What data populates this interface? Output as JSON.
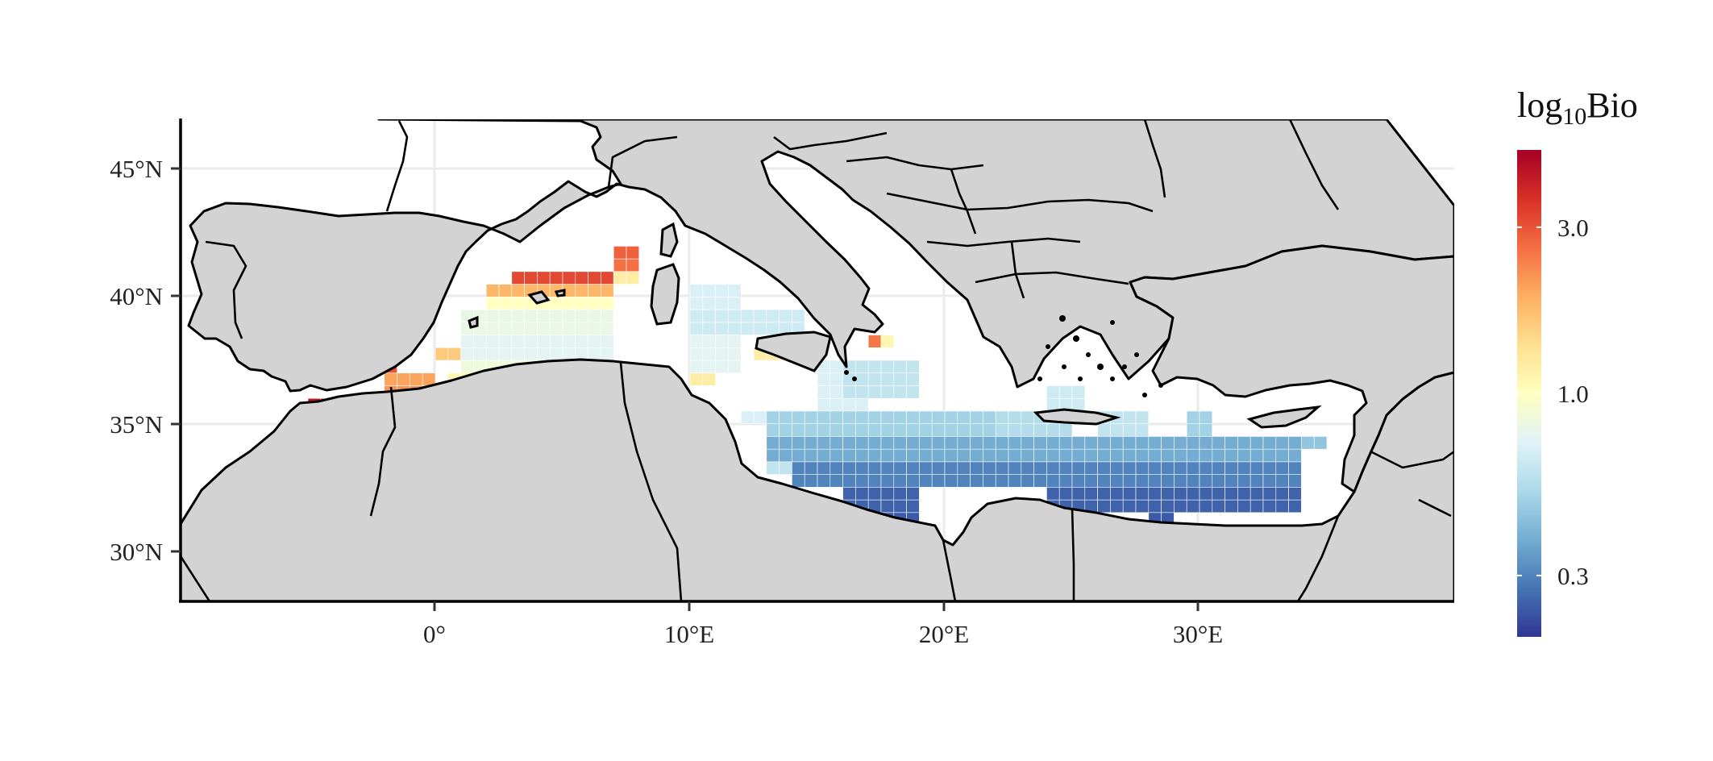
{
  "map": {
    "x_ticks": [
      "0°",
      "10°E",
      "20°E",
      "30°E"
    ],
    "y_ticks": [
      "45°N",
      "40°N",
      "35°N",
      "30°N"
    ],
    "lon_range": [
      -10,
      40
    ],
    "lat_range": [
      28,
      47
    ],
    "land_color": "#d3d3d3",
    "sea_color": "#ffffff",
    "grid": true
  },
  "legend": {
    "title_base": "log",
    "title_sub": "10",
    "title_suffix": "Bio",
    "ticks": [
      "3.0",
      "1.0",
      "0.3"
    ],
    "tick_values": [
      3.0,
      1.0,
      0.3
    ],
    "range": [
      0.2,
      5.0
    ],
    "scale": "log",
    "palette": "RdYlBu (reversed)",
    "colors": [
      "#313695",
      "#4575b4",
      "#74add1",
      "#abd9e9",
      "#e0f3f8",
      "#ffffbf",
      "#fee090",
      "#fdae61",
      "#f46d43",
      "#d73027",
      "#a50026"
    ]
  },
  "chart_data": {
    "type": "heatmap",
    "variable": "log10Bio",
    "cell_size_deg": 0.5,
    "blocks": [
      {
        "lon": [
          -5.0,
          -2.5
        ],
        "lat": [
          35.5,
          36.0
        ],
        "value": 4.2
      },
      {
        "lon": [
          -2.0,
          0.0
        ],
        "lat": [
          36.5,
          37.0
        ],
        "value": 2.0
      },
      {
        "lon": [
          -2.0,
          0.0
        ],
        "lat": [
          36.0,
          36.5
        ],
        "value": 2.2
      },
      {
        "lon": [
          -2.0,
          -1.5
        ],
        "lat": [
          37.0,
          37.5
        ],
        "value": 3.0
      },
      {
        "lon": [
          0.0,
          1.0
        ],
        "lat": [
          37.5,
          38.0
        ],
        "value": 1.6
      },
      {
        "lon": [
          0.5,
          9.0
        ],
        "lat": [
          36.5,
          37.0
        ],
        "value": 1.1
      },
      {
        "lon": [
          1.0,
          7.0
        ],
        "lat": [
          37.0,
          37.5
        ],
        "value": 0.85
      },
      {
        "lon": [
          1.0,
          7.0
        ],
        "lat": [
          37.5,
          38.5
        ],
        "value": 0.75
      },
      {
        "lon": [
          1.0,
          7.0
        ],
        "lat": [
          38.5,
          39.5
        ],
        "value": 0.8
      },
      {
        "lon": [
          2.0,
          7.0
        ],
        "lat": [
          39.5,
          40.0
        ],
        "value": 1.0
      },
      {
        "lon": [
          2.0,
          7.0
        ],
        "lat": [
          40.0,
          40.5
        ],
        "value": 1.8
      },
      {
        "lon": [
          3.0,
          7.0
        ],
        "lat": [
          40.5,
          41.0
        ],
        "value": 3.2
      },
      {
        "lon": [
          7.0,
          8.0
        ],
        "lat": [
          40.5,
          41.0
        ],
        "value": 1.2
      },
      {
        "lon": [
          7.0,
          8.0
        ],
        "lat": [
          41.0,
          41.5
        ],
        "value": 2.6
      },
      {
        "lon": [
          7.0,
          8.0
        ],
        "lat": [
          41.5,
          42.0
        ],
        "value": 2.8
      },
      {
        "lon": [
          10.0,
          11.0
        ],
        "lat": [
          36.5,
          37.0
        ],
        "value": 1.2
      },
      {
        "lon": [
          10.0,
          12.0
        ],
        "lat": [
          37.0,
          38.5
        ],
        "value": 0.75
      },
      {
        "lon": [
          10.0,
          14.5
        ],
        "lat": [
          38.5,
          39.5
        ],
        "value": 0.65
      },
      {
        "lon": [
          10.0,
          12.0
        ],
        "lat": [
          39.5,
          40.5
        ],
        "value": 0.7
      },
      {
        "lon": [
          12.5,
          15.0
        ],
        "lat": [
          37.5,
          38.0
        ],
        "value": 1.2
      },
      {
        "lon": [
          17.0,
          17.5
        ],
        "lat": [
          38.0,
          38.5
        ],
        "value": 2.5
      },
      {
        "lon": [
          17.5,
          18.0
        ],
        "lat": [
          38.0,
          38.5
        ],
        "value": 1.1
      },
      {
        "lon": [
          15.0,
          17.0
        ],
        "lat": [
          35.0,
          37.5
        ],
        "value": 0.7
      },
      {
        "lon": [
          16.0,
          19.0
        ],
        "lat": [
          36.0,
          37.5
        ],
        "value": 0.6
      },
      {
        "lon": [
          12.0,
          15.0
        ],
        "lat": [
          35.0,
          35.5
        ],
        "value": 0.7
      },
      {
        "lon": [
          13.0,
          22.0
        ],
        "lat": [
          34.5,
          35.5
        ],
        "value": 0.5
      },
      {
        "lon": [
          22.0,
          25.0
        ],
        "lat": [
          34.5,
          35.5
        ],
        "value": 0.55
      },
      {
        "lon": [
          24.0,
          25.5
        ],
        "lat": [
          35.5,
          36.5
        ],
        "value": 0.65
      },
      {
        "lon": [
          26.0,
          28.0
        ],
        "lat": [
          34.5,
          35.5
        ],
        "value": 0.6
      },
      {
        "lon": [
          29.5,
          30.5
        ],
        "lat": [
          34.5,
          35.5
        ],
        "value": 0.5
      },
      {
        "lon": [
          13.0,
          34.0
        ],
        "lat": [
          33.5,
          34.5
        ],
        "value": 0.38
      },
      {
        "lon": [
          34.0,
          35.0
        ],
        "lat": [
          34.0,
          34.5
        ],
        "value": 0.45
      },
      {
        "lon": [
          13.0,
          14.0
        ],
        "lat": [
          33.0,
          33.5
        ],
        "value": 0.6
      },
      {
        "lon": [
          14.0,
          34.0
        ],
        "lat": [
          32.5,
          33.5
        ],
        "value": 0.3
      },
      {
        "lon": [
          16.0,
          19.0
        ],
        "lat": [
          31.5,
          32.5
        ],
        "value": 0.25
      },
      {
        "lon": [
          17.0,
          19.0
        ],
        "lat": [
          31.0,
          31.5
        ],
        "value": 0.24
      },
      {
        "lon": [
          24.0,
          34.0
        ],
        "lat": [
          31.5,
          32.5
        ],
        "value": 0.25
      },
      {
        "lon": [
          28.0,
          29.0
        ],
        "lat": [
          31.0,
          31.5
        ],
        "value": 0.24
      }
    ]
  }
}
